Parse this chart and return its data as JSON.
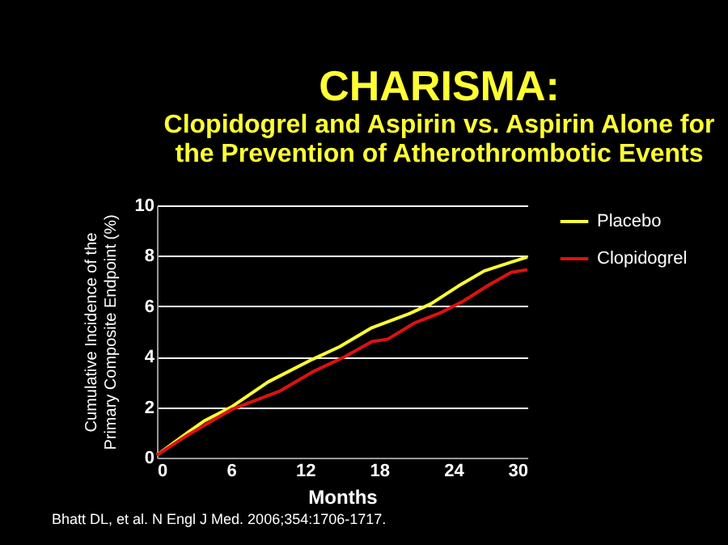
{
  "chart_data": {
    "type": "line",
    "title": "CHARISMA:",
    "subtitle": "Clopidogrel and Aspirin vs. Aspirin Alone for\nthe Prevention of Atherothrombotic Events",
    "xlabel": "Months",
    "ylabel": "Cumulative Incidence of the\nPrimary Composite Endpoint (%)",
    "series": [
      {
        "name": "Placebo",
        "color": "#ffff33",
        "x": [
          0,
          2.5,
          3.8,
          6,
          9,
          12.6,
          14.8,
          17.4,
          20.4,
          22.2,
          24.4,
          26.5,
          28.7,
          30
        ],
        "values": [
          0.1,
          1.0,
          1.45,
          2.0,
          3.0,
          3.9,
          4.4,
          5.15,
          5.7,
          6.1,
          6.8,
          7.4,
          7.75,
          7.95
        ]
      },
      {
        "name": "Clopidogrel",
        "color": "#dd1111",
        "x": [
          0,
          2.5,
          6,
          10,
          12.6,
          15.2,
          17.4,
          18.7,
          20.9,
          23,
          24.8,
          26.9,
          28.7,
          30
        ],
        "values": [
          0.1,
          0.9,
          1.9,
          2.65,
          3.4,
          4.0,
          4.6,
          4.7,
          5.35,
          5.75,
          6.2,
          6.85,
          7.35,
          7.45
        ]
      }
    ],
    "xlim": [
      0,
      30
    ],
    "xticks": [
      0,
      6,
      12,
      18,
      24,
      30
    ],
    "ylim": [
      0,
      10
    ],
    "yticks": [
      0,
      2,
      4,
      6,
      8,
      10
    ],
    "grid": "y",
    "legend": "right",
    "marker": "none",
    "line_style": "solid",
    "annotations": [
      "Bhatt DL, et al. N Engl J Med. 2006;354:1706-1717."
    ]
  }
}
